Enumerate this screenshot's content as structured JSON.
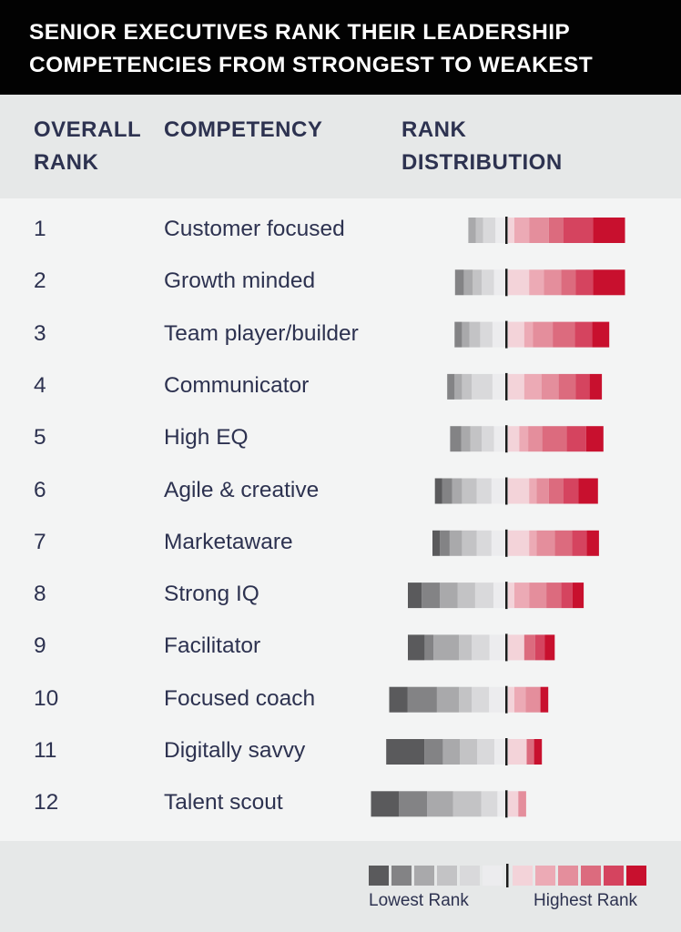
{
  "title": {
    "line1": "SENIOR EXECUTIVES RANK THEIR LEADERSHIP",
    "line2": "COMPETENCIES FROM STRONGEST TO WEAKEST"
  },
  "columns": {
    "rank_line1": "OVERALL",
    "rank_line2": "RANK",
    "competency": "COMPETENCY",
    "dist_line1": "RANK",
    "dist_line2": "DISTRIBUTION"
  },
  "legend": {
    "lowest": "Lowest Rank",
    "highest": "Highest Rank",
    "low_colors": [
      "#5a5a5c",
      "#838385",
      "#a9a9ab",
      "#c3c3c5",
      "#d9d9db",
      "#ececee"
    ],
    "high_colors": [
      "#f3d3d9",
      "#ecaab5",
      "#e48e9c",
      "#dc6b7e",
      "#d5445f",
      "#c8102e"
    ]
  },
  "chart_data": {
    "type": "bar",
    "title": "SENIOR EXECUTIVES RANK THEIR LEADERSHIP COMPETENCIES FROM STRONGEST TO WEAKEST",
    "categories": [
      "Customer focused",
      "Growth minded",
      "Team player/builder",
      "Communicator",
      "High EQ",
      "Agile & creative",
      "Marketaware",
      "Strong IQ",
      "Facilitator",
      "Focused coach",
      "Digitally savvy",
      "Talent scout"
    ],
    "ranks": [
      "1",
      "2",
      "3",
      "4",
      "5",
      "6",
      "7",
      "8",
      "9",
      "10",
      "11",
      "12"
    ],
    "low_rank_segments": [
      [
        0,
        0,
        1.5,
        1.5,
        2.5,
        2.2
      ],
      [
        0,
        1.8,
        1.8,
        1.8,
        2.5,
        2.5
      ],
      [
        0,
        1.5,
        1.5,
        2.2,
        2.5,
        2.8
      ],
      [
        0,
        1.5,
        1.5,
        2,
        4.2,
        2.8
      ],
      [
        0,
        2.3,
        1.8,
        2.3,
        2.5,
        2.5
      ],
      [
        1.5,
        2,
        2,
        3,
        3,
        3
      ],
      [
        1.5,
        2,
        2.5,
        3,
        3,
        3
      ],
      [
        2.8,
        3.7,
        3.6,
        3.6,
        3.7,
        2.6
      ],
      [
        3.4,
        1.8,
        5.2,
        2.6,
        3.6,
        3.4
      ],
      [
        3.7,
        6,
        4.5,
        2.6,
        3.5,
        3.5
      ],
      [
        7.8,
        3.7,
        3.5,
        3.5,
        3.5,
        2.4
      ],
      [
        5.7,
        5.7,
        5.3,
        5.7,
        3.3,
        1.8
      ]
    ],
    "high_rank_segments": [
      [
        1.3,
        3,
        4,
        3,
        6,
        6.5
      ],
      [
        4.3,
        3,
        3.5,
        3,
        3.5,
        6.5
      ],
      [
        3.3,
        1.8,
        4,
        4.5,
        3.5,
        3.5
      ],
      [
        3.3,
        3.5,
        3.5,
        3.5,
        2.8,
        2.5
      ],
      [
        2.3,
        1.8,
        2.8,
        5,
        4,
        3.5
      ],
      [
        4.3,
        1.5,
        2.5,
        3,
        3,
        4
      ],
      [
        4.3,
        1.5,
        3.7,
        3.5,
        3,
        2.5
      ],
      [
        1.3,
        3,
        3.5,
        3,
        2.3,
        2.3
      ],
      [
        3.3,
        0,
        0,
        2.2,
        2,
        2
      ],
      [
        1.3,
        2.3,
        3,
        0,
        0,
        1.6
      ],
      [
        3.8,
        0,
        0,
        1.5,
        0,
        1.6
      ],
      [
        2.1,
        0,
        1.6,
        0,
        0,
        0
      ]
    ]
  }
}
